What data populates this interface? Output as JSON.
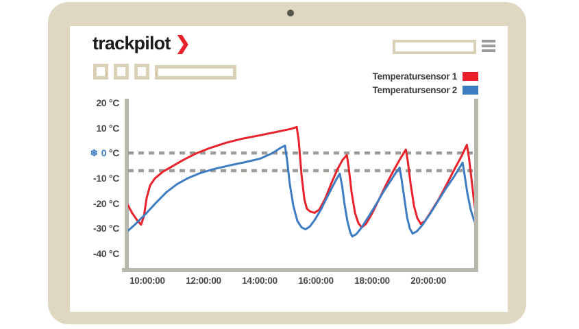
{
  "app": {
    "logo_text": "trackpilot",
    "logo_chevron": "❯"
  },
  "header": {
    "search_value": ""
  },
  "legend": {
    "items": [
      {
        "label": "Temperatursensor 1",
        "color": "#e8212b"
      },
      {
        "label": "Temperatursensor 2",
        "color": "#3e7cc2"
      }
    ]
  },
  "colors": {
    "frame_beige": "#ded8c3",
    "widget_beige": "#d8d1b8",
    "axis_gray": "#b9b8af",
    "dashed_gray": "#9d9d97",
    "text_dark": "#474747",
    "logo_dark": "#1c1c1a",
    "sensor1_red": "#e8212b",
    "sensor2_blue": "#3e7cc2",
    "background": "#ffffff"
  },
  "chart_data": {
    "type": "line",
    "title": "",
    "xlabel": "",
    "ylabel": "",
    "grid": "threshold-dashes-only",
    "legend_position": "top-right",
    "freeze_icon": "❄",
    "x_range": [
      9.32,
      21.63
    ],
    "y_range": [
      -45.8,
      21.4
    ],
    "x_ticks": [
      {
        "value": 10,
        "label": "10:00:00"
      },
      {
        "value": 12,
        "label": "12:00:00"
      },
      {
        "value": 14,
        "label": "14:00:00"
      },
      {
        "value": 16,
        "label": "16:00:00"
      },
      {
        "value": 18,
        "label": "18:00:00"
      },
      {
        "value": 20,
        "label": "20:00:00"
      }
    ],
    "y_ticks": [
      {
        "value": 20,
        "num": "20",
        "unit": "°C"
      },
      {
        "value": 10,
        "num": "10",
        "unit": "°C"
      },
      {
        "value": 0,
        "num": "0",
        "unit": "°C",
        "highlight": true
      },
      {
        "value": -10,
        "num": "-10",
        "unit": "°C"
      },
      {
        "value": -20,
        "num": "-20",
        "unit": "°C"
      },
      {
        "value": -30,
        "num": "-30",
        "unit": "°C"
      },
      {
        "value": -40,
        "num": "-40",
        "unit": "°C"
      }
    ],
    "threshold_lines": [
      {
        "value": 0
      },
      {
        "value": -7
      }
    ],
    "series": [
      {
        "name": "Temperatursensor 1",
        "color": "#e8212b",
        "points": [
          [
            9.29,
            -20.3
          ],
          [
            9.46,
            -23.8
          ],
          [
            9.63,
            -26.6
          ],
          [
            9.78,
            -28.5
          ],
          [
            9.88,
            -25.2
          ],
          [
            9.98,
            -17.8
          ],
          [
            10.1,
            -12.9
          ],
          [
            10.27,
            -10.1
          ],
          [
            10.56,
            -7.4
          ],
          [
            10.9,
            -5.2
          ],
          [
            11.29,
            -2.7
          ],
          [
            11.71,
            -0.3
          ],
          [
            12.2,
            1.9
          ],
          [
            12.8,
            4.1
          ],
          [
            13.41,
            5.8
          ],
          [
            14.02,
            7.1
          ],
          [
            14.63,
            8.5
          ],
          [
            15.1,
            9.6
          ],
          [
            15.32,
            10.4
          ],
          [
            15.39,
            4.9
          ],
          [
            15.49,
            -8.8
          ],
          [
            15.59,
            -18.4
          ],
          [
            15.68,
            -22.2
          ],
          [
            15.8,
            -23.3
          ],
          [
            15.95,
            -23.8
          ],
          [
            16.12,
            -22.5
          ],
          [
            16.32,
            -18.4
          ],
          [
            16.54,
            -12.3
          ],
          [
            16.76,
            -6.6
          ],
          [
            16.95,
            -2.7
          ],
          [
            17.1,
            -0.8
          ],
          [
            17.17,
            -6.0
          ],
          [
            17.27,
            -15.6
          ],
          [
            17.39,
            -23.8
          ],
          [
            17.51,
            -27.9
          ],
          [
            17.63,
            -29.6
          ],
          [
            17.78,
            -28.2
          ],
          [
            17.98,
            -24.4
          ],
          [
            18.24,
            -18.6
          ],
          [
            18.51,
            -12.3
          ],
          [
            18.78,
            -6.6
          ],
          [
            19.02,
            -1.9
          ],
          [
            19.2,
            1.4
          ],
          [
            19.27,
            -3.3
          ],
          [
            19.37,
            -12.3
          ],
          [
            19.49,
            -21.1
          ],
          [
            19.61,
            -26.0
          ],
          [
            19.73,
            -28.2
          ],
          [
            19.88,
            -27.1
          ],
          [
            20.07,
            -23.8
          ],
          [
            20.37,
            -18.4
          ],
          [
            20.66,
            -12.3
          ],
          [
            20.95,
            -6.0
          ],
          [
            21.2,
            -0.8
          ],
          [
            21.37,
            3.3
          ],
          [
            21.44,
            -1.4
          ],
          [
            21.54,
            -10.7
          ],
          [
            21.61,
            -17.8
          ],
          [
            21.66,
            -21.9
          ]
        ]
      },
      {
        "name": "Temperatursensor 2",
        "color": "#3e7cc2",
        "points": [
          [
            9.29,
            -31.2
          ],
          [
            9.59,
            -28.2
          ],
          [
            9.93,
            -24.4
          ],
          [
            10.32,
            -19.7
          ],
          [
            10.68,
            -15.6
          ],
          [
            11.07,
            -12.3
          ],
          [
            11.46,
            -9.9
          ],
          [
            11.9,
            -7.9
          ],
          [
            12.39,
            -6.3
          ],
          [
            12.93,
            -4.9
          ],
          [
            13.49,
            -3.6
          ],
          [
            14.02,
            -2.2
          ],
          [
            14.46,
            0.0
          ],
          [
            14.76,
            2.2
          ],
          [
            14.9,
            3.0
          ],
          [
            14.98,
            -3.3
          ],
          [
            15.07,
            -12.3
          ],
          [
            15.2,
            -21.1
          ],
          [
            15.34,
            -27.1
          ],
          [
            15.49,
            -29.6
          ],
          [
            15.63,
            -30.4
          ],
          [
            15.78,
            -29.3
          ],
          [
            15.95,
            -26.8
          ],
          [
            16.17,
            -22.7
          ],
          [
            16.39,
            -17.8
          ],
          [
            16.59,
            -13.4
          ],
          [
            16.73,
            -10.4
          ],
          [
            16.85,
            -8.2
          ],
          [
            16.93,
            -12.9
          ],
          [
            17.02,
            -20.5
          ],
          [
            17.12,
            -27.1
          ],
          [
            17.22,
            -31.5
          ],
          [
            17.29,
            -33.2
          ],
          [
            17.44,
            -32.3
          ],
          [
            17.63,
            -29.6
          ],
          [
            17.88,
            -25.2
          ],
          [
            18.15,
            -20.3
          ],
          [
            18.41,
            -15.3
          ],
          [
            18.66,
            -11.0
          ],
          [
            18.85,
            -7.7
          ],
          [
            18.98,
            -5.8
          ],
          [
            19.05,
            -10.7
          ],
          [
            19.15,
            -18.4
          ],
          [
            19.24,
            -25.5
          ],
          [
            19.34,
            -30.1
          ],
          [
            19.44,
            -32.1
          ],
          [
            19.59,
            -31.2
          ],
          [
            19.78,
            -28.8
          ],
          [
            20.05,
            -24.4
          ],
          [
            20.34,
            -19.2
          ],
          [
            20.63,
            -14.0
          ],
          [
            20.9,
            -9.6
          ],
          [
            21.1,
            -6.0
          ],
          [
            21.22,
            -3.8
          ],
          [
            21.29,
            -8.8
          ],
          [
            21.39,
            -16.2
          ],
          [
            21.51,
            -22.7
          ],
          [
            21.61,
            -26.3
          ],
          [
            21.66,
            -27.7
          ]
        ]
      }
    ]
  }
}
